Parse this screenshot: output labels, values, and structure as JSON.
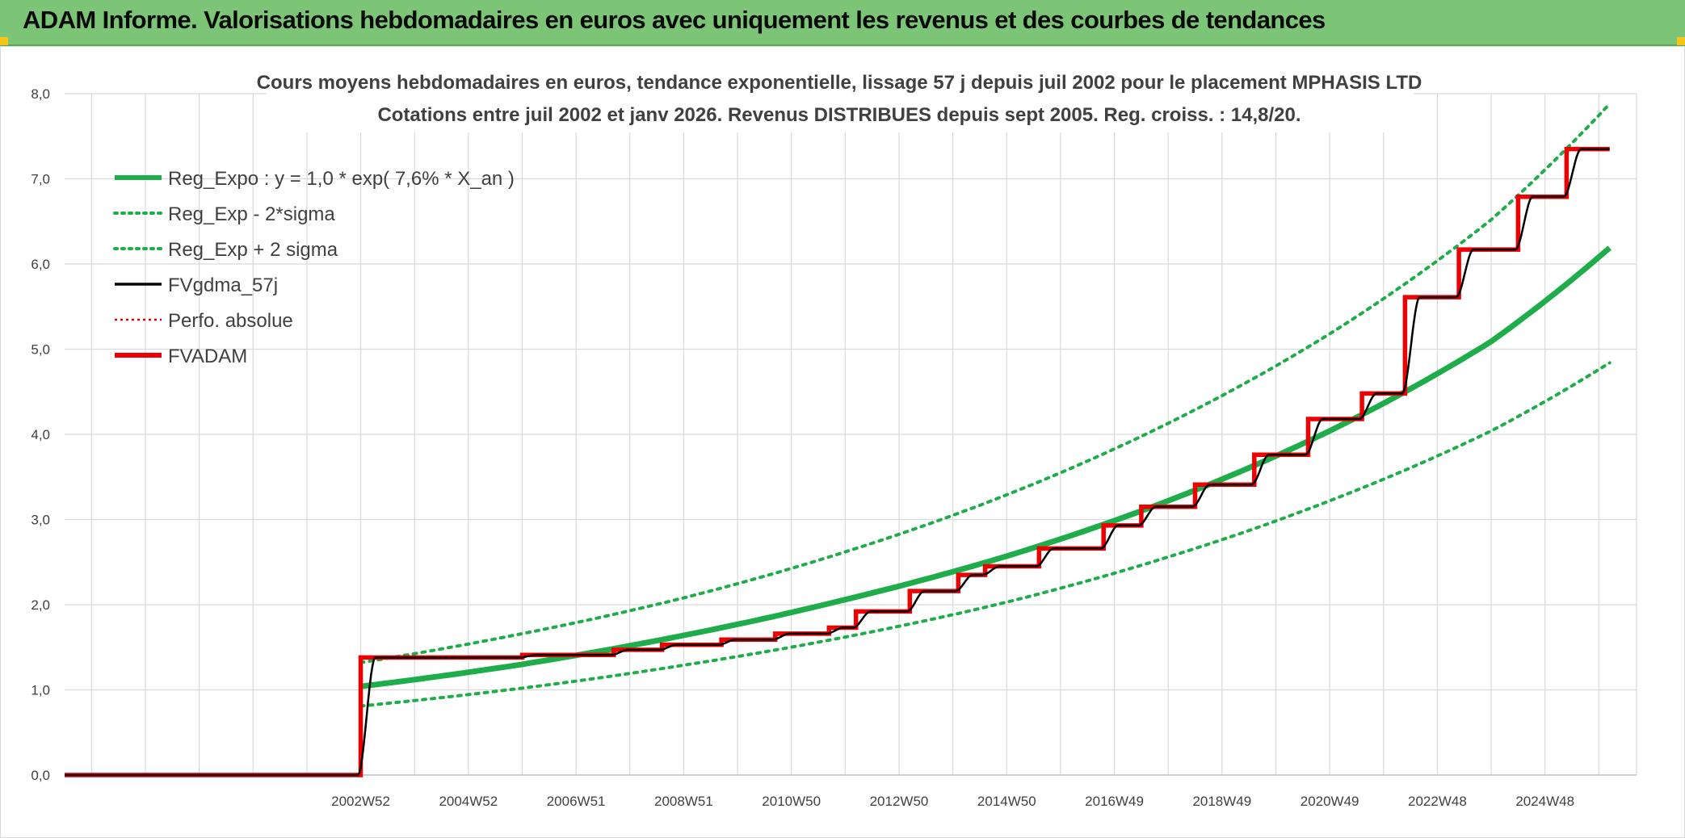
{
  "header": {
    "title": "ADAM Informe. Valorisations hebdomadaires en euros avec uniquement les revenus et des courbes de tendances"
  },
  "chart_data": {
    "type": "line",
    "title": "Cours moyens hebdomadaires en euros, tendance exponentielle, lissage 57 j depuis juil 2002 pour le placement MPHASIS LTD",
    "subtitle": "Cotations entre juil 2002 et janv 2026. Revenus DISTRIBUES depuis sept 2005. Reg. croiss. : 14,8/20.",
    "xlabel": "",
    "ylabel": "",
    "ylim": [
      0,
      8
    ],
    "y_ticks": [
      "0,0",
      "1,0",
      "2,0",
      "3,0",
      "4,0",
      "5,0",
      "6,0",
      "7,0",
      "8,0"
    ],
    "x_ticks": [
      {
        "label": "2002W52",
        "x": 2003.0
      },
      {
        "label": "2004W52",
        "x": 2005.0
      },
      {
        "label": "2006W51",
        "x": 2007.0
      },
      {
        "label": "2008W51",
        "x": 2009.0
      },
      {
        "label": "2010W50",
        "x": 2011.0
      },
      {
        "label": "2012W50",
        "x": 2013.0
      },
      {
        "label": "2014W50",
        "x": 2015.0
      },
      {
        "label": "2016W49",
        "x": 2017.0
      },
      {
        "label": "2018W49",
        "x": 2019.0
      },
      {
        "label": "2020W49",
        "x": 2021.0
      },
      {
        "label": "2022W48",
        "x": 2023.0
      },
      {
        "label": "2024W48",
        "x": 2025.0
      }
    ],
    "xlim": [
      1997.5,
      2026.7
    ],
    "grid": true,
    "legend_position": "top-left",
    "legend": [
      {
        "key": "reg",
        "label": "Reg_Expo : y = 1,0 * exp( 7,6% *  X_an )",
        "color": "#1fad4b",
        "style": "solid-thick"
      },
      {
        "key": "low",
        "label": "Reg_Exp - 2*sigma",
        "color": "#1fad4b",
        "style": "dotted"
      },
      {
        "key": "high",
        "label": "Reg_Exp + 2 sigma",
        "color": "#1fad4b",
        "style": "dotted"
      },
      {
        "key": "fvgdma",
        "label": "FVgdma_57j",
        "color": "#000000",
        "style": "solid"
      },
      {
        "key": "perfo",
        "label": "Perfo. absolue",
        "color": "#e00000",
        "style": "dotted-thin"
      },
      {
        "key": "fvadam",
        "label": "FVADAM",
        "color": "#ee0000",
        "style": "solid-thick"
      }
    ],
    "series": [
      {
        "name": "Reg_Expo : y = 1,0 * exp( 7,6% *  X_an )",
        "x": [
          2003.0,
          2006.0,
          2009.0,
          2012.0,
          2015.0,
          2018.0,
          2021.0,
          2024.0,
          2026.2
        ],
        "y": [
          1.04,
          1.3,
          1.64,
          2.06,
          2.57,
          3.22,
          4.04,
          5.09,
          6.19
        ]
      },
      {
        "name": "Reg_Exp - 2*sigma",
        "x": [
          2003.0,
          2006.0,
          2009.0,
          2012.0,
          2015.0,
          2018.0,
          2021.0,
          2024.0,
          2026.2
        ],
        "y": [
          0.81,
          1.02,
          1.29,
          1.62,
          2.03,
          2.56,
          3.22,
          4.04,
          4.84
        ]
      },
      {
        "name": "Reg_Exp + 2 sigma",
        "x": [
          2003.0,
          2006.0,
          2009.0,
          2012.0,
          2015.0,
          2018.0,
          2021.0,
          2024.0,
          2026.2
        ],
        "y": [
          1.32,
          1.66,
          2.08,
          2.62,
          3.29,
          4.13,
          5.18,
          6.52,
          7.88
        ]
      },
      {
        "name": "FVADAM",
        "x": [
          1997.5,
          2003.0,
          2003.0,
          2006.0,
          2006.0,
          2007.7,
          2007.7,
          2008.6,
          2008.6,
          2009.7,
          2009.7,
          2010.7,
          2010.7,
          2011.7,
          2011.7,
          2012.2,
          2012.2,
          2013.2,
          2013.2,
          2014.1,
          2014.1,
          2014.6,
          2014.6,
          2015.6,
          2015.6,
          2016.8,
          2016.8,
          2017.5,
          2017.5,
          2018.5,
          2018.5,
          2019.6,
          2019.6,
          2020.6,
          2020.6,
          2021.6,
          2021.6,
          2022.4,
          2022.4,
          2023.4,
          2023.4,
          2024.5,
          2024.5,
          2025.4,
          2025.4,
          2026.2
        ],
        "y": [
          0.0,
          0.0,
          1.38,
          1.38,
          1.41,
          1.41,
          1.47,
          1.47,
          1.53,
          1.53,
          1.59,
          1.59,
          1.66,
          1.66,
          1.73,
          1.73,
          1.92,
          1.92,
          2.16,
          2.16,
          2.35,
          2.35,
          2.45,
          2.45,
          2.66,
          2.66,
          2.93,
          2.93,
          3.15,
          3.15,
          3.41,
          3.41,
          3.76,
          3.76,
          4.18,
          4.18,
          4.48,
          4.48,
          5.61,
          5.61,
          6.17,
          6.17,
          6.79,
          6.79,
          7.35,
          7.35
        ]
      }
    ]
  }
}
